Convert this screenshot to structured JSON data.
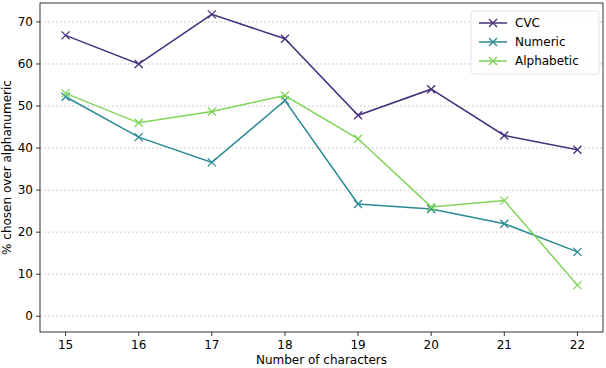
{
  "chart_data": {
    "type": "line",
    "x_label": "Number of characters",
    "y_label": "% chosen over alphanumeric",
    "x": [
      15,
      16,
      17,
      18,
      19,
      20,
      21,
      22
    ],
    "series": [
      {
        "name": "CVC",
        "color": "#46307e",
        "marker": "x",
        "line_style": "solid",
        "values": [
          66.8,
          60.0,
          71.8,
          66.0,
          47.8,
          54.0,
          43.0,
          39.6
        ]
      },
      {
        "name": "Numeric",
        "color": "#2a8a93",
        "marker": "x",
        "line_style": "solid",
        "values": [
          52.2,
          42.6,
          36.6,
          51.3,
          26.7,
          25.5,
          22.0,
          15.3
        ]
      },
      {
        "name": "Alphabetic",
        "color": "#7fd55a",
        "marker": "x",
        "line_style": "solid",
        "values": [
          53.0,
          46.0,
          48.7,
          52.5,
          42.2,
          26.0,
          27.5,
          7.4
        ]
      }
    ],
    "xlim": [
      14.65,
      22.35
    ],
    "ylim": [
      -3.75,
      74.5
    ],
    "xticks": [
      15,
      16,
      17,
      18,
      19,
      20,
      21,
      22
    ],
    "yticks": [
      0,
      10,
      20,
      30,
      40,
      50,
      60,
      70
    ],
    "grid": true,
    "legend": "upper right"
  }
}
